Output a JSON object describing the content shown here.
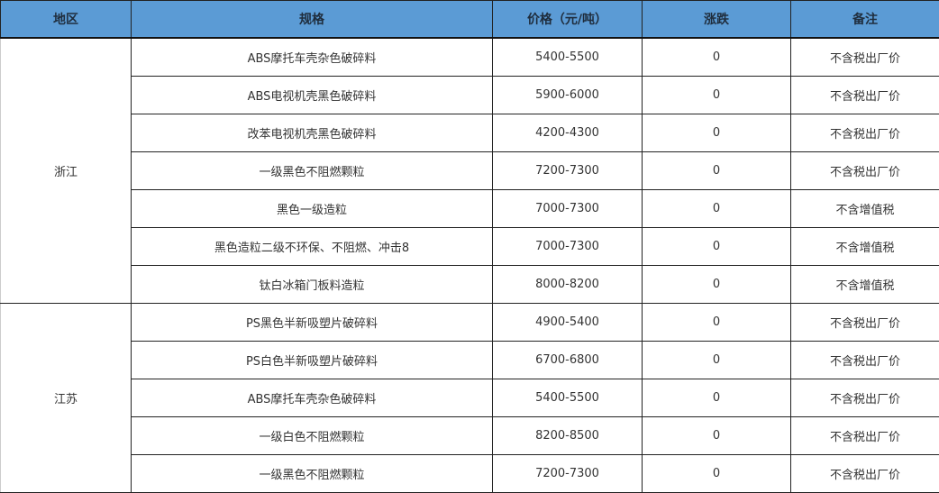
{
  "header": {
    "region": "地区",
    "spec": "规格",
    "price": "价格（元/吨）",
    "change": "涨跌",
    "note": "备注"
  },
  "accent": "#5b9bd5",
  "groups": [
    {
      "region": "浙江",
      "rows": [
        {
          "spec": "ABS摩托车壳杂色破碎料",
          "price": "5400-5500",
          "change": "0",
          "note": "不含税出厂价"
        },
        {
          "spec": "ABS电视机壳黑色破碎料",
          "price": "5900-6000",
          "change": "0",
          "note": "不含税出厂价"
        },
        {
          "spec": "改苯电视机壳黑色破碎料",
          "price": "4200-4300",
          "change": "0",
          "note": "不含税出厂价"
        },
        {
          "spec": "一级黑色不阻燃颗粒",
          "price": "7200-7300",
          "change": "0",
          "note": "不含税出厂价"
        },
        {
          "spec": "黑色一级造粒",
          "price": "7000-7300",
          "change": "0",
          "note": "不含增值税"
        },
        {
          "spec": "黑色造粒二级不环保、不阻燃、冲击8",
          "price": "7000-7300",
          "change": "0",
          "note": "不含增值税"
        },
        {
          "spec": "钛白冰箱门板料造粒",
          "price": "8000-8200",
          "change": "0",
          "note": "不含增值税"
        }
      ]
    },
    {
      "region": "江苏",
      "rows": [
        {
          "spec": "PS黑色半新吸塑片破碎料",
          "price": "4900-5400",
          "change": "0",
          "note": "不含税出厂价"
        },
        {
          "spec": "PS白色半新吸塑片破碎料",
          "price": "6700-6800",
          "change": "0",
          "note": "不含税出厂价"
        },
        {
          "spec": "ABS摩托车壳杂色破碎料",
          "price": "5400-5500",
          "change": "0",
          "note": "不含税出厂价"
        },
        {
          "spec": "一级白色不阻燃颗粒",
          "price": "8200-8500",
          "change": "0",
          "note": "不含税出厂价"
        },
        {
          "spec": "一级黑色不阻燃颗粒",
          "price": "7200-7300",
          "change": "0",
          "note": "不含税出厂价"
        }
      ]
    }
  ]
}
